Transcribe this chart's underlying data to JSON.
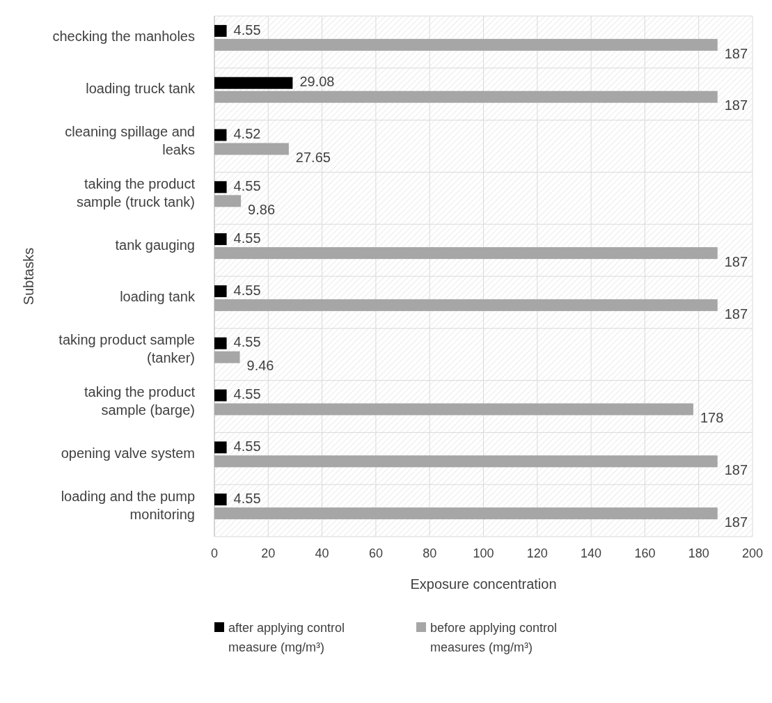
{
  "chart_data": {
    "type": "bar",
    "orientation": "horizontal",
    "xlabel": "Exposure concentration",
    "ylabel": "Subtasks",
    "categories": [
      "checking the manholes",
      "loading truck tank",
      "cleaning spillage and leaks",
      "taking the product sample (truck tank)",
      "tank gauging",
      "loading tank",
      "taking product sample (tanker)",
      "taking the product sample (barge)",
      "opening valve system",
      "loading and the pump monitoring"
    ],
    "series": [
      {
        "name": "after applying control measure (mg/m³)",
        "color": "#000000",
        "values": [
          4.55,
          29.08,
          4.52,
          4.55,
          4.55,
          4.55,
          4.55,
          4.55,
          4.55,
          4.55
        ]
      },
      {
        "name": "before applying control measures (mg/m³)",
        "color": "#a6a6a6",
        "values": [
          187,
          187,
          27.65,
          9.86,
          187,
          187,
          9.46,
          178,
          187,
          187
        ]
      }
    ],
    "xlim": [
      0,
      200
    ],
    "xticks": [
      0,
      20,
      40,
      60,
      80,
      100,
      120,
      140,
      160,
      180,
      200
    ],
    "grid": true,
    "data_labels": true,
    "legend": "bottom"
  }
}
